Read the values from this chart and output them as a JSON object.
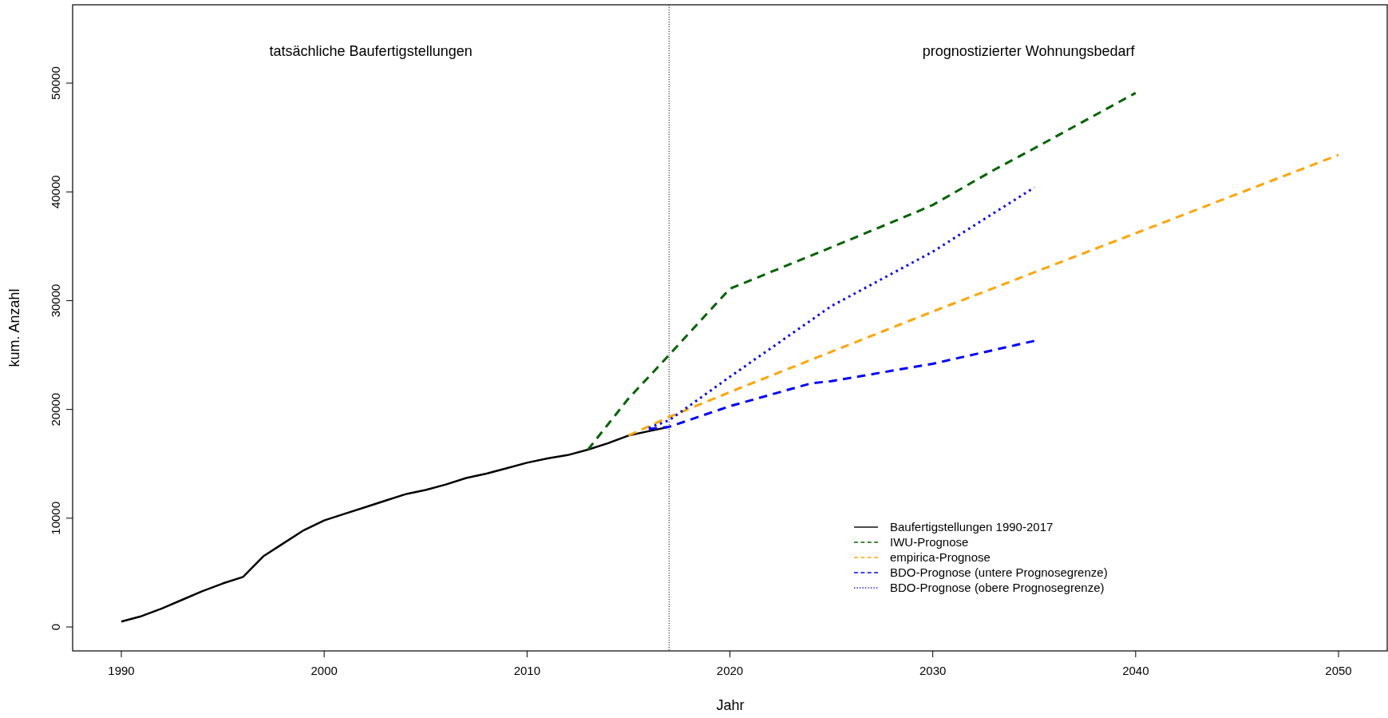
{
  "chart_data": {
    "type": "line",
    "xlabel": "Jahr",
    "ylabel": "kum. Anzahl",
    "xlim": [
      1987.6,
      2052.4
    ],
    "ylim": [
      -2200,
      57200
    ],
    "xticks": [
      1990,
      2000,
      2010,
      2020,
      2030,
      2040,
      2050
    ],
    "yticks": [
      0,
      10000,
      20000,
      30000,
      40000,
      50000
    ],
    "grid": false,
    "legend": "bottom right",
    "marker": "none",
    "ref_lines": [
      {
        "axis": "x",
        "value": 2017,
        "line_style": "dotted",
        "color": "#000000"
      }
    ],
    "annotations": [
      "tatsächliche Baufertigstellungen",
      "prognostizierter Wohnungsbedarf"
    ],
    "series": [
      {
        "name": "Baufertigstellungen 1990-2017",
        "color": "#000000",
        "line_style": "solid",
        "x": [
          1990,
          1991,
          1992,
          1993,
          1994,
          1995,
          1996,
          1997,
          1998,
          1999,
          2000,
          2001,
          2002,
          2003,
          2004,
          2005,
          2006,
          2007,
          2008,
          2009,
          2010,
          2011,
          2012,
          2013,
          2014,
          2015,
          2016,
          2017
        ],
        "values": [
          500,
          1000,
          1700,
          2500,
          3300,
          4000,
          4600,
          6500,
          7700,
          8900,
          9800,
          10400,
          11000,
          11600,
          12200,
          12600,
          13100,
          13700,
          14100,
          14600,
          15100,
          15500,
          15800,
          16300,
          16900,
          17600,
          18000,
          18400
        ]
      },
      {
        "name": "IWU-Prognose",
        "color": "#006400",
        "line_style": "dashed",
        "x": [
          2013,
          2015,
          2017,
          2020,
          2025,
          2029,
          2030,
          2033,
          2035,
          2040
        ],
        "values": [
          16300,
          21000,
          25000,
          31100,
          34900,
          38000,
          38800,
          42000,
          44000,
          49100
        ]
      },
      {
        "name": "empirica-Prognose",
        "color": "#ffa500",
        "line_style": "dashed",
        "x": [
          2015,
          2017,
          2020,
          2030,
          2040,
          2050
        ],
        "values": [
          17600,
          19300,
          21600,
          29000,
          36200,
          43400
        ]
      },
      {
        "name": "BDO-Prognose (untere Prognosegrenze)",
        "color": "#0000ff",
        "line_style": "dashed",
        "x": [
          2016,
          2017,
          2020,
          2024,
          2025,
          2030,
          2035
        ],
        "values": [
          18200,
          18400,
          20300,
          22400,
          22600,
          24200,
          26300
        ]
      },
      {
        "name": "BDO-Prognose (obere Prognosegrenze)",
        "color": "#0000ff",
        "line_style": "dotted",
        "x": [
          2016,
          2017,
          2020,
          2025,
          2030,
          2035
        ],
        "values": [
          18300,
          19000,
          23000,
          29500,
          34500,
          40400
        ]
      }
    ]
  }
}
